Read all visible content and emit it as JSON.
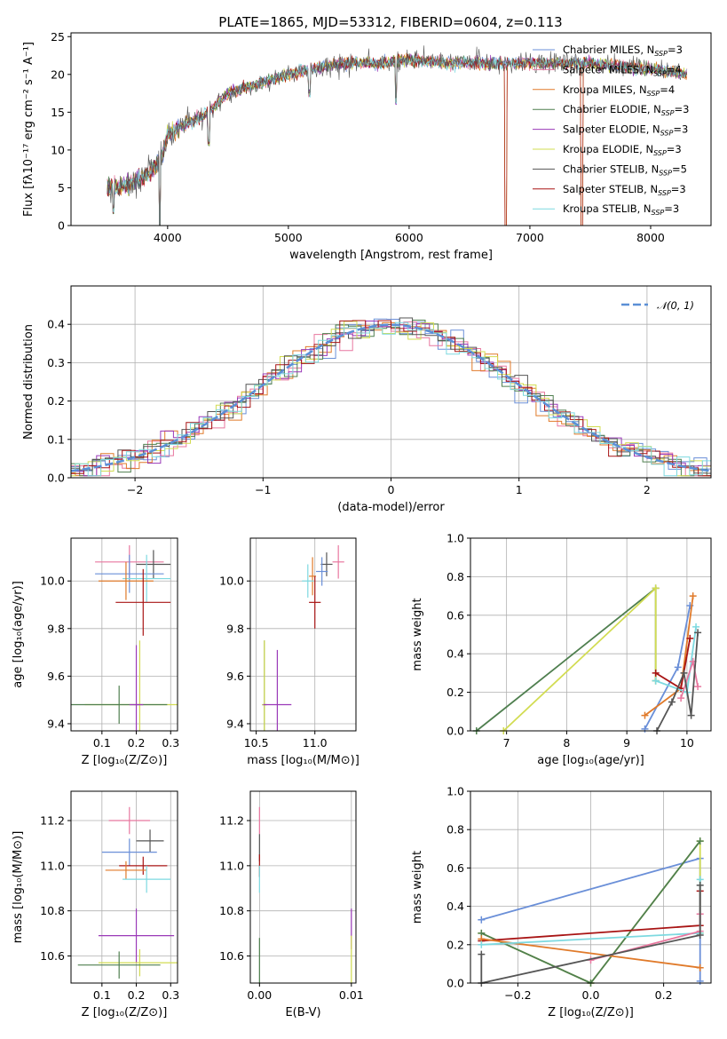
{
  "figure": {
    "title": "PLATE=1865, MJD=53312, FIBERID=0604, z=0.113"
  },
  "colors": {
    "chabrier_miles": "#6a8fd8",
    "salpeter_miles": "#e8779f",
    "kroupa_miles": "#e07a2a",
    "chabrier_elodie": "#4f7f4f",
    "salpeter_elodie": "#9a39b8",
    "kroupa_elodie": "#d2dc52",
    "chabrier_stelib": "#555555",
    "salpeter_stelib": "#a81414",
    "kroupa_stelib": "#7dd9e0",
    "normal_curve": "#5b8fd6"
  },
  "chart_data": [
    {
      "id": "spectrum",
      "type": "line",
      "xlabel": "wavelength [Angstrom, rest frame]",
      "ylabel": "Flux [fλ10⁻¹⁷ erg cm⁻² s⁻¹ A⁻¹]",
      "xlim": [
        3200,
        8500
      ],
      "ylim": [
        0,
        25.5
      ],
      "xticks": [
        "4000",
        "5000",
        "6000",
        "7000",
        "8000"
      ],
      "yticks": [
        "0",
        "5",
        "10",
        "15",
        "20",
        "25"
      ],
      "grid": false,
      "legend_position": "right",
      "legend": [
        "Chabrier MILES, N_SSP=3",
        "Salpeter MILES, N_SSP=4",
        "Kroupa MILES, N_SSP=4",
        "Chabrier ELODIE, N_SSP=3",
        "Salpeter ELODIE, N_SSP=3",
        "Kroupa ELODIE, N_SSP=3",
        "Chabrier STELIB, N_SSP=5",
        "Salpeter STELIB, N_SSP=3",
        "Kroupa STELIB, N_SSP=3"
      ],
      "continuum": {
        "x": [
          3500,
          3700,
          3850,
          3950,
          4000,
          4150,
          4300,
          4500,
          4700,
          4900,
          5100,
          5300,
          5500,
          5800,
          6000,
          6300,
          6600,
          6900,
          7200,
          7500,
          7800,
          8100,
          8300
        ],
        "y": [
          5,
          5.5,
          7,
          9,
          12,
          13.5,
          14.5,
          17.5,
          18.5,
          19.5,
          20.5,
          21,
          21.5,
          21.5,
          22,
          21.5,
          21.5,
          21.5,
          21.5,
          21.5,
          21,
          20.5,
          20
        ]
      },
      "dips": [
        {
          "x": 3550,
          "y": 1.5
        },
        {
          "x": 3934,
          "y": 0
        },
        {
          "x": 4340,
          "y": 10.5
        },
        {
          "x": 5175,
          "y": 17
        },
        {
          "x": 5892,
          "y": 16
        },
        {
          "x": 6800,
          "y": 0
        },
        {
          "x": 7430,
          "y": 0
        }
      ]
    },
    {
      "id": "residual-hist",
      "type": "histogram",
      "xlabel": "(data-model)/error",
      "ylabel": "Normed distribution",
      "xlim": [
        -2.5,
        2.5
      ],
      "ylim": [
        0,
        0.5
      ],
      "xticks": [
        "−2",
        "−1",
        "0",
        "1",
        "2"
      ],
      "yticks": [
        "0.0",
        "0.1",
        "0.2",
        "0.3",
        "0.4"
      ],
      "grid": true,
      "legend_position": "top-right",
      "legend": [
        "𝒩(0, 1)"
      ],
      "bin_width": 0.1
    },
    {
      "id": "age-vs-z",
      "type": "errorbar",
      "xlabel": "Z [log₁₀(Z/Z⊙)]",
      "ylabel": "age  [log₁₀(age/yr)]",
      "xlim": [
        0.01,
        0.32
      ],
      "ylim": [
        9.37,
        10.18
      ],
      "xticks": [
        "0.1",
        "0.2",
        "0.3"
      ],
      "yticks": [
        "9.4",
        "9.6",
        "9.8",
        "10.0"
      ],
      "grid": true,
      "points": [
        {
          "c": "salpeter_miles",
          "x": 0.18,
          "xe": 0.1,
          "y": 10.08,
          "ye": 0.07
        },
        {
          "c": "chabrier_stelib",
          "x": 0.25,
          "xe": 0.05,
          "y": 10.07,
          "ye": 0.06
        },
        {
          "c": "chabrier_miles",
          "x": 0.18,
          "xe": 0.1,
          "y": 10.03,
          "ye": 0.08
        },
        {
          "c": "kroupa_stelib",
          "x": 0.23,
          "xe": 0.07,
          "y": 10.01,
          "ye": 0.1
        },
        {
          "c": "kroupa_miles",
          "x": 0.17,
          "xe": 0.08,
          "y": 10.0,
          "ye": 0.08
        },
        {
          "c": "salpeter_stelib",
          "x": 0.22,
          "xe": 0.08,
          "y": 9.91,
          "ye": 0.14
        },
        {
          "c": "kroupa_elodie",
          "x": 0.21,
          "xe": 0.16,
          "y": 9.48,
          "ye": 0.27
        },
        {
          "c": "chabrier_elodie",
          "x": 0.15,
          "xe": 0.14,
          "y": 9.48,
          "ye": 0.08
        },
        {
          "c": "salpeter_elodie",
          "x": 0.2,
          "xe": 0.02,
          "y": 9.48,
          "ye": 0.25
        }
      ]
    },
    {
      "id": "age-vs-mass",
      "type": "errorbar",
      "xlabel": "mass [log₁₀(M/M⊙)]",
      "ylabel": "",
      "xlim": [
        10.45,
        11.35
      ],
      "ylim": [
        9.37,
        10.18
      ],
      "xticks": [
        "10.5",
        "11.0"
      ],
      "yticks": [
        "9.4",
        "9.6",
        "9.8",
        "10.0"
      ],
      "grid": true,
      "points": [
        {
          "c": "salpeter_miles",
          "x": 11.2,
          "xe": 0.05,
          "y": 10.08,
          "ye": 0.07
        },
        {
          "c": "chabrier_stelib",
          "x": 11.1,
          "xe": 0.05,
          "y": 10.07,
          "ye": 0.05
        },
        {
          "c": "kroupa_miles",
          "x": 10.98,
          "xe": 0.03,
          "y": 10.02,
          "ye": 0.08
        },
        {
          "c": "chabrier_miles",
          "x": 11.06,
          "xe": 0.05,
          "y": 10.04,
          "ye": 0.06
        },
        {
          "c": "kroupa_stelib",
          "x": 10.94,
          "xe": 0.05,
          "y": 10.0,
          "ye": 0.07
        },
        {
          "c": "salpeter_stelib",
          "x": 11.0,
          "xe": 0.05,
          "y": 9.91,
          "ye": 0.11
        },
        {
          "c": "chabrier_elodie",
          "x": 10.57,
          "xe": 0.02,
          "y": 9.48,
          "ye": 0.27
        },
        {
          "c": "kroupa_elodie",
          "x": 10.57,
          "xe": 0.02,
          "y": 9.48,
          "ye": 0.27
        },
        {
          "c": "salpeter_elodie",
          "x": 10.68,
          "xe": 0.12,
          "y": 9.48,
          "ye": 0.23
        }
      ]
    },
    {
      "id": "weight-vs-age",
      "type": "line",
      "xlabel": "age  [log₁₀(age/yr)]",
      "ylabel": "mass weight",
      "xlim": [
        6.4,
        10.4
      ],
      "ylim": [
        0,
        1.0
      ],
      "xticks": [
        "7",
        "8",
        "9",
        "10"
      ],
      "yticks": [
        "0.0",
        "0.2",
        "0.4",
        "0.6",
        "0.8",
        "1.0"
      ],
      "grid": true,
      "series": [
        {
          "c": "chabrier_elodie",
          "x": [
            6.5,
            9.48,
            9.48
          ],
          "y": [
            0.0,
            0.74,
            0.26
          ]
        },
        {
          "c": "kroupa_elodie",
          "x": [
            6.95,
            9.48,
            9.48
          ],
          "y": [
            0.0,
            0.74,
            0.26
          ]
        },
        {
          "c": "chabrier_miles",
          "x": [
            9.3,
            9.85,
            10.05
          ],
          "y": [
            0.01,
            0.33,
            0.65
          ]
        },
        {
          "c": "kroupa_miles",
          "x": [
            9.3,
            9.9,
            10.1
          ],
          "y": [
            0.08,
            0.22,
            0.7
          ]
        },
        {
          "c": "salpeter_stelib",
          "x": [
            9.48,
            9.9,
            10.05
          ],
          "y": [
            0.3,
            0.22,
            0.48
          ]
        },
        {
          "c": "kroupa_stelib",
          "x": [
            9.48,
            10.0,
            10.15
          ],
          "y": [
            0.26,
            0.2,
            0.54
          ]
        },
        {
          "c": "salpeter_miles",
          "x": [
            9.9,
            10.1,
            10.18
          ],
          "y": [
            0.17,
            0.36,
            0.23
          ]
        },
        {
          "c": "chabrier_stelib",
          "x": [
            9.5,
            9.75,
            9.95,
            10.07,
            10.18
          ],
          "y": [
            0.0,
            0.15,
            0.3,
            0.08,
            0.51
          ]
        }
      ]
    },
    {
      "id": "mass-vs-z",
      "type": "errorbar",
      "xlabel": "Z [log₁₀(Z/Z⊙)]",
      "ylabel": "mass [log₁₀(M/M⊙)]",
      "xlim": [
        0.01,
        0.32
      ],
      "ylim": [
        10.48,
        11.33
      ],
      "xticks": [
        "0.1",
        "0.2",
        "0.3"
      ],
      "yticks": [
        "10.6",
        "10.8",
        "11.0",
        "11.2"
      ],
      "grid": true,
      "points": [
        {
          "c": "salpeter_miles",
          "x": 0.18,
          "xe": 0.06,
          "y": 11.2,
          "ye": 0.06
        },
        {
          "c": "chabrier_stelib",
          "x": 0.24,
          "xe": 0.04,
          "y": 11.11,
          "ye": 0.05
        },
        {
          "c": "chabrier_miles",
          "x": 0.18,
          "xe": 0.08,
          "y": 11.06,
          "ye": 0.06
        },
        {
          "c": "salpeter_stelib",
          "x": 0.22,
          "xe": 0.07,
          "y": 11.0,
          "ye": 0.04
        },
        {
          "c": "kroupa_miles",
          "x": 0.17,
          "xe": 0.06,
          "y": 10.98,
          "ye": 0.04
        },
        {
          "c": "kroupa_stelib",
          "x": 0.23,
          "xe": 0.07,
          "y": 10.94,
          "ye": 0.06
        },
        {
          "c": "salpeter_elodie",
          "x": 0.2,
          "xe": 0.11,
          "y": 10.69,
          "ye": 0.12
        },
        {
          "c": "kroupa_elodie",
          "x": 0.21,
          "xe": 0.12,
          "y": 10.57,
          "ye": 0.06
        },
        {
          "c": "chabrier_elodie",
          "x": 0.15,
          "xe": 0.12,
          "y": 10.56,
          "ye": 0.06
        }
      ]
    },
    {
      "id": "mass-vs-ebv",
      "type": "errorbar",
      "xlabel": "E(B-V)",
      "ylabel": "",
      "xlim": [
        -0.001,
        0.0105
      ],
      "ylim": [
        10.48,
        11.33
      ],
      "xticks": [
        "0.00",
        "0.01"
      ],
      "yticks": [
        "10.6",
        "10.8",
        "11.0",
        "11.2"
      ],
      "grid": true,
      "points": [
        {
          "c": "salpeter_miles",
          "x": 0.0,
          "xe": 0,
          "y": 11.2,
          "ye": 0.06
        },
        {
          "c": "chabrier_stelib",
          "x": 0.0,
          "xe": 0,
          "y": 11.08,
          "ye": 0.06
        },
        {
          "c": "salpeter_stelib",
          "x": 0.0,
          "xe": 0,
          "y": 11.0,
          "ye": 0.05
        },
        {
          "c": "kroupa_stelib",
          "x": 0.0,
          "xe": 0,
          "y": 10.94,
          "ye": 0.06
        },
        {
          "c": "chabrier_elodie",
          "x": 0.0,
          "xe": 0,
          "y": 10.58,
          "ye": 0.1
        },
        {
          "c": "salpeter_elodie",
          "x": 0.01,
          "xe": 0,
          "y": 10.72,
          "ye": 0.09
        },
        {
          "c": "kroupa_elodie",
          "x": 0.01,
          "xe": 0,
          "y": 10.58,
          "ye": 0.11
        }
      ]
    },
    {
      "id": "weight-vs-z",
      "type": "line",
      "xlabel": "Z [log₁₀(Z/Z⊙)]",
      "ylabel": "mass weight",
      "xlim": [
        -0.33,
        0.33
      ],
      "ylim": [
        0,
        1.0
      ],
      "xticks": [
        "−0.2",
        "0.0",
        "0.2"
      ],
      "yticks": [
        "0.0",
        "0.2",
        "0.4",
        "0.6",
        "0.8",
        "1.0"
      ],
      "grid": true,
      "series": [
        {
          "c": "chabrier_miles",
          "x": [
            -0.3,
            0.3,
            0.3
          ],
          "y": [
            0.33,
            0.65,
            0.01
          ]
        },
        {
          "c": "kroupa_elodie",
          "x": [
            -0.3,
            0.0,
            0.3,
            0.3
          ],
          "y": [
            0.26,
            0.0,
            0.74,
            0.26
          ]
        },
        {
          "c": "chabrier_elodie",
          "x": [
            -0.3,
            0.0,
            0.3
          ],
          "y": [
            0.26,
            0.0,
            0.74
          ]
        },
        {
          "c": "salpeter_stelib",
          "x": [
            -0.3,
            0.3,
            0.3
          ],
          "y": [
            0.22,
            0.3,
            0.48
          ]
        },
        {
          "c": "kroupa_miles",
          "x": [
            -0.3,
            0.3
          ],
          "y": [
            0.23,
            0.08
          ]
        },
        {
          "c": "kroupa_stelib",
          "x": [
            -0.3,
            0.3,
            0.3
          ],
          "y": [
            0.2,
            0.26,
            0.54
          ]
        },
        {
          "c": "salpeter_miles",
          "x": [
            0.0,
            0.3,
            0.3
          ],
          "y": [
            0.12,
            0.27,
            0.36
          ]
        },
        {
          "c": "chabrier_stelib",
          "x": [
            -0.3,
            -0.3,
            0.3,
            0.3
          ],
          "y": [
            0.15,
            0.0,
            0.25,
            0.51
          ]
        }
      ]
    }
  ]
}
